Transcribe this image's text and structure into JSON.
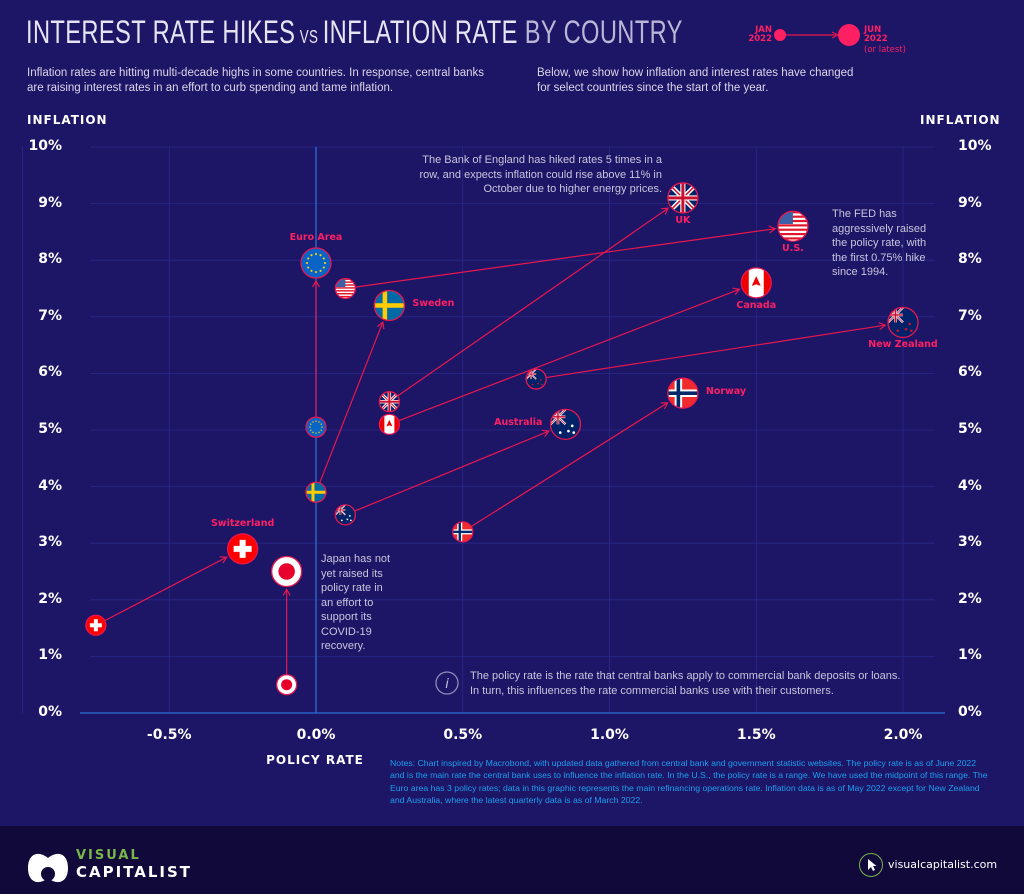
{
  "header": {
    "title_part1": "INTEREST RATE HIKES",
    "title_vs": "VS",
    "title_part2": "INFLATION RATE",
    "title_part3": "BY COUNTRY",
    "intro_left": "Inflation rates are hitting multi-decade highs in some countries. In response, central banks are raising interest rates in an effort to curb spending and tame inflation.",
    "intro_right": "Below, we show how inflation and interest rates have changed for select countries since the start of the year.",
    "legend": {
      "start_label": "JAN 2022",
      "end_label": "JUN 2022",
      "end_note": "(or latest)",
      "color": "#ff1f63"
    }
  },
  "chart_data": {
    "type": "scatter",
    "subtype": "arrow-connected (start to end)",
    "xlabel": "POLICY RATE",
    "ylabel": "INFLATION",
    "xlim": [
      -0.85,
      2.1
    ],
    "ylim": [
      0,
      10
    ],
    "x_ticks": [
      "-0.5%",
      "0.0%",
      "0.5%",
      "1.0%",
      "1.5%",
      "2.0%"
    ],
    "x_tick_values": [
      -0.5,
      0,
      0.5,
      1.0,
      1.5,
      2.0
    ],
    "y_ticks": [
      "0%",
      "1%",
      "2%",
      "3%",
      "4%",
      "5%",
      "6%",
      "7%",
      "8%",
      "9%",
      "10%"
    ],
    "y_tick_values": [
      0,
      1,
      2,
      3,
      4,
      5,
      6,
      7,
      8,
      9,
      10
    ],
    "grid": true,
    "series": [
      {
        "name": "Switzerland",
        "flag": "ch",
        "start": [
          -0.75,
          1.55
        ],
        "end": [
          -0.25,
          2.9
        ],
        "label_pos": "top"
      },
      {
        "name": "",
        "flag": "jp",
        "start": [
          -0.1,
          0.5
        ],
        "end": [
          -0.1,
          2.5
        ],
        "label_pos": "none"
      },
      {
        "name": "Euro Area",
        "flag": "eu",
        "start": [
          0.0,
          5.05
        ],
        "end": [
          0.0,
          7.95
        ],
        "label_pos": "top"
      },
      {
        "name": "Sweden",
        "flag": "se",
        "start": [
          0.0,
          3.9
        ],
        "end": [
          0.25,
          7.2
        ],
        "label_pos": "right"
      },
      {
        "name": "U.S.",
        "flag": "us",
        "start": [
          0.1,
          7.5
        ],
        "end": [
          1.625,
          8.6
        ],
        "label_pos": "bottom"
      },
      {
        "name": "UK",
        "flag": "uk",
        "start": [
          0.25,
          5.5
        ],
        "end": [
          1.25,
          9.1
        ],
        "label_pos": "bottom"
      },
      {
        "name": "Canada",
        "flag": "ca",
        "start": [
          0.25,
          5.1
        ],
        "end": [
          1.5,
          7.6
        ],
        "label_pos": "bottom"
      },
      {
        "name": "New Zealand",
        "flag": "nz",
        "start": [
          0.75,
          5.9
        ],
        "end": [
          2.0,
          6.9
        ],
        "label_pos": "bottom"
      },
      {
        "name": "Australia",
        "flag": "au",
        "start": [
          0.1,
          3.5
        ],
        "end": [
          0.85,
          5.1
        ],
        "label_pos": "left"
      },
      {
        "name": "Norway",
        "flag": "no",
        "start": [
          0.5,
          3.2
        ],
        "end": [
          1.25,
          5.65
        ],
        "label_pos": "right"
      }
    ],
    "annotations": {
      "uk": "The Bank of England has hiked rates 5 times in a row, and expects inflation could rise above 11% in October due to higher energy prices.",
      "us": "The FED has aggressively raised the policy rate, with the first 0.75% hike since 1994.",
      "japan": "Japan has not yet raised its policy rate in an effort to support its COVID-19 recovery.",
      "info": "The policy rate is the rate that central banks apply to commercial bank deposits or loans. In turn, this influences the rate commercial banks use with their customers."
    },
    "colors": {
      "background": "#1d1566",
      "arrow": "#e8174f",
      "label": "#ff1f63",
      "zero_line": "#2b6fd6",
      "grid": "#2a2a8a"
    }
  },
  "notes": "Notes: Chart inspired by Macrobond, with updated data gathered from central bank and government statistic websites. The policy rate is as of June 2022 and is the main rate the central bank uses to influence the inflation rate. In the U.S., the policy rate is a range. We have used the midpoint of this range. The Euro area has 3 policy rates; data in this graphic represents the main refinancing operations rate. Inflation data is as of May 2022 except for New Zealand and Australia, where the latest quarterly data is as of March 2022.",
  "footer": {
    "logo_top": "VISUAL",
    "logo_bottom": "CAPITALIST",
    "site": "visualcapitalist.com"
  }
}
